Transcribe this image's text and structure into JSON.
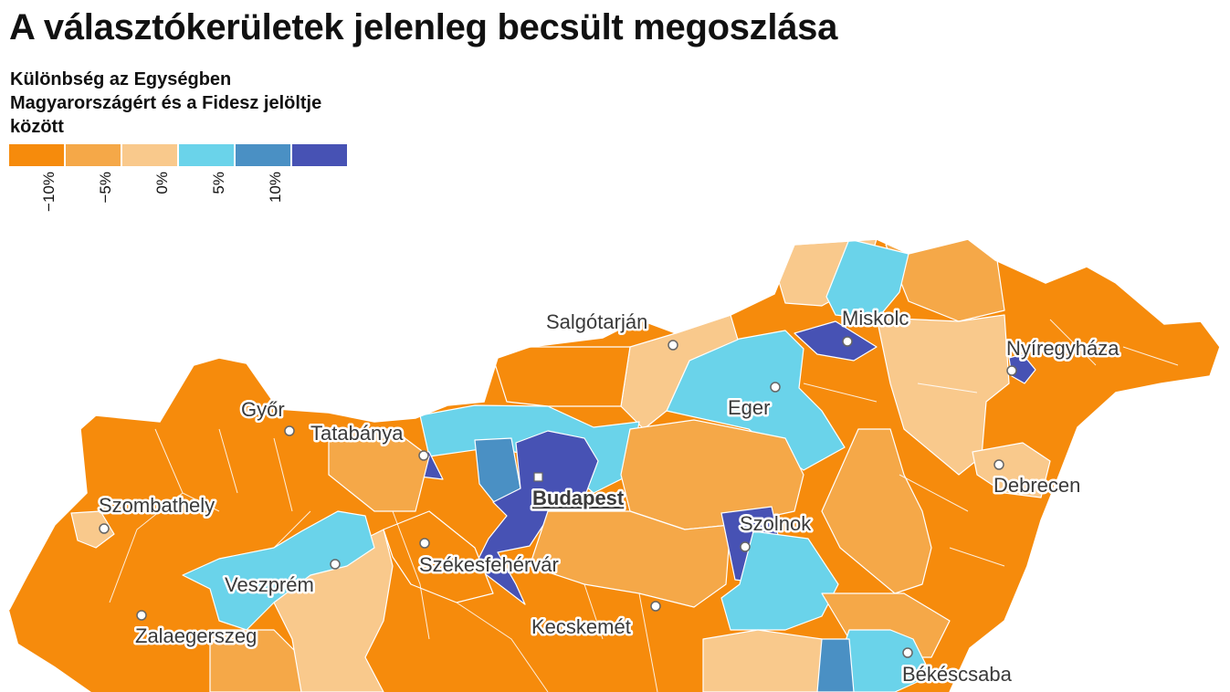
{
  "title": "A választókerületek jelenleg becsült megoszlása",
  "legend": {
    "title": "Különbség az Egységben Magyarországért és a Fidesz jelöltje között",
    "colors": [
      "#f68b0c",
      "#f5a848",
      "#f9c98c",
      "#6ad3ea",
      "#4a90c4",
      "#4752b4"
    ],
    "ticks": [
      "−10%",
      "−5%",
      "0%",
      "5%",
      "10%"
    ]
  },
  "cities": [
    {
      "name": "Salgótarján"
    },
    {
      "name": "Miskolc"
    },
    {
      "name": "Nyíregyháza"
    },
    {
      "name": "Győr"
    },
    {
      "name": "Tatabánya"
    },
    {
      "name": "Eger"
    },
    {
      "name": "Budapest",
      "capital": true
    },
    {
      "name": "Debrecen"
    },
    {
      "name": "Szombathely"
    },
    {
      "name": "Szolnok"
    },
    {
      "name": "Székesfehérvár"
    },
    {
      "name": "Veszprém"
    },
    {
      "name": "Zalaegerszeg"
    },
    {
      "name": "Kecskemét"
    },
    {
      "name": "Békéscsaba"
    }
  ]
}
